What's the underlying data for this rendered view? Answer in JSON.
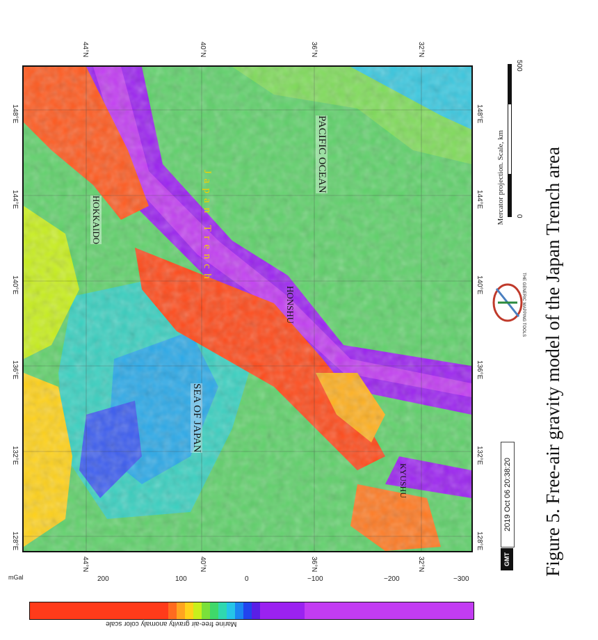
{
  "figure": {
    "caption": "Figure 5. Free-air gravity model of the Japan Trench area",
    "projection_note": "Mercator projection. Scale, km",
    "scale_labels": [
      "0",
      "500"
    ],
    "timestamp": "2019 Oct 06 20:38:20",
    "gmt_badge": "GMT",
    "gmt_logo_text": "THE GENERIC MAPPING TOOLS"
  },
  "map": {
    "labels": {
      "hokkaido": "HOKKAIDO",
      "honshu": "HONSHU",
      "kyushu": "KYUSHU",
      "sea_of_japan": "SEA OF JAPAN",
      "pacific_ocean": "PACIFIC OCEAN",
      "japan_trench": "Japan Trench"
    },
    "lon_ticks": [
      "128°E",
      "132°E",
      "136°E",
      "140°E",
      "144°E",
      "148°E"
    ],
    "lat_ticks_top": [
      "44°N",
      "40°N",
      "36°N",
      "32°N"
    ],
    "lat_ticks_bottom": [
      "44°N",
      "40°N",
      "36°N",
      "32°N"
    ]
  },
  "colorbar": {
    "units": "mGal",
    "title": "Marine free-air gravity anomaly color scale",
    "tick_labels": [
      "200",
      "100",
      "0",
      "−100",
      "−200",
      "−300"
    ],
    "colors": [
      "#ff3b1a",
      "#ff6b1f",
      "#ffa41f",
      "#ffd21a",
      "#c8ef1c",
      "#7ae03a",
      "#3fd86a",
      "#2fd8b0",
      "#25c5e8",
      "#1b86f2",
      "#2244ee",
      "#5a1fe6",
      "#9b22f0",
      "#c23cf2"
    ]
  }
}
